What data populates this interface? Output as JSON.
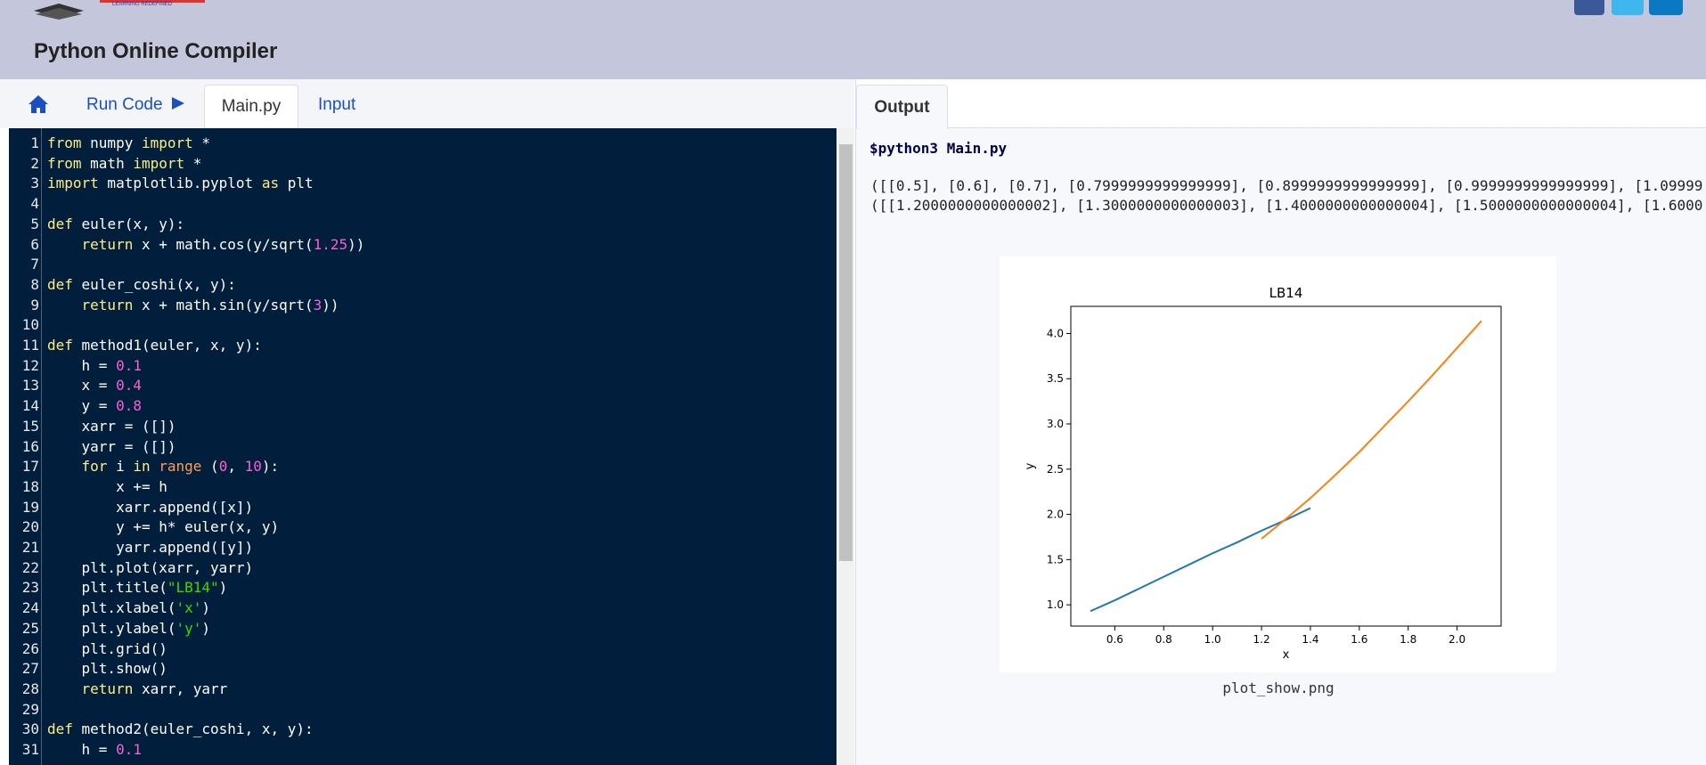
{
  "header": {
    "logo_tagline": "LEARNING REDEFINED",
    "title": "Python Online Compiler"
  },
  "left_tabs": {
    "run": "Run Code",
    "main": "Main.py",
    "input": "Input"
  },
  "right_tabs": {
    "output": "Output"
  },
  "code": {
    "lines": [
      {
        "n": 1,
        "text": "from numpy import *"
      },
      {
        "n": 2,
        "text": "from math import *"
      },
      {
        "n": 3,
        "text": "import matplotlib.pyplot as plt"
      },
      {
        "n": 4,
        "text": null
      },
      {
        "n": 5,
        "text": "def euler(x, y):"
      },
      {
        "n": 6,
        "text": "    return x + math.cos(y/sqrt(1.25))"
      },
      {
        "n": 7,
        "text": null
      },
      {
        "n": 8,
        "text": "def euler_coshi(x, y):"
      },
      {
        "n": 9,
        "text": "    return x + math.sin(y/sqrt(3))"
      },
      {
        "n": 10,
        "text": null
      },
      {
        "n": 11,
        "text": "def method1(euler, x, y):"
      },
      {
        "n": 12,
        "text": "    h = 0.1"
      },
      {
        "n": 13,
        "text": "    x = 0.4"
      },
      {
        "n": 14,
        "text": "    y = 0.8"
      },
      {
        "n": 15,
        "text": "    xarr = ([])"
      },
      {
        "n": 16,
        "text": "    yarr = ([])"
      },
      {
        "n": 17,
        "text": "    for i in range (0, 10):"
      },
      {
        "n": 18,
        "text": "        x += h"
      },
      {
        "n": 19,
        "text": "        xarr.append([x])"
      },
      {
        "n": 20,
        "text": "        y += h* euler(x, y)"
      },
      {
        "n": 21,
        "text": "        yarr.append([y])"
      },
      {
        "n": 22,
        "text": "    plt.plot(xarr, yarr)"
      },
      {
        "n": 23,
        "text": "    plt.title(\"LB14\")"
      },
      {
        "n": 24,
        "text": "    plt.xlabel('x')"
      },
      {
        "n": 25,
        "text": "    plt.ylabel('y')"
      },
      {
        "n": 26,
        "text": "    plt.grid()"
      },
      {
        "n": 27,
        "text": "    plt.show()"
      },
      {
        "n": 28,
        "text": "    return xarr, yarr"
      },
      {
        "n": 29,
        "text": null
      },
      {
        "n": 30,
        "text": "def method2(euler_coshi, x, y):"
      },
      {
        "n": 31,
        "text": "    h = 0.1"
      }
    ]
  },
  "output": {
    "command": "$python3 Main.py",
    "lines": [
      "([[0.5], [0.6], [0.7], [0.7999999999999999], [0.8999999999999999], [0.9999999999999999], [1.09999",
      "([[1.2000000000000002], [1.3000000000000003], [1.4000000000000004], [1.5000000000000004], [1.6000"
    ],
    "caption": "plot_show.png"
  },
  "chart_data": {
    "type": "line",
    "title": "LB14",
    "x_label": "x",
    "y_label": "y",
    "grid": false,
    "xlim": [
      0.42,
      2.18
    ],
    "ylim": [
      0.765,
      4.3
    ],
    "xticks": [
      0.6,
      0.8,
      {
        "value": 1,
        "label": "1.0"
      },
      1.2,
      1.4,
      1.6,
      1.8,
      {
        "value": 2,
        "label": "2.0"
      }
    ],
    "yticks": [
      {
        "value": 1,
        "label": "1.0"
      },
      1.5,
      {
        "value": 2,
        "label": "2.0"
      },
      2.5,
      {
        "value": 3,
        "label": "3.0"
      },
      3.5,
      {
        "value": 4,
        "label": "4.0"
      }
    ],
    "series": [
      {
        "color": "#1f77b4",
        "x": [
          0.5,
          0.6,
          0.7,
          0.8,
          0.9,
          1.0,
          1.1,
          1.2,
          1.3,
          1.4
        ],
        "values": [
          0.93,
          1.05,
          1.18,
          1.31,
          1.44,
          1.57,
          1.69,
          1.82,
          1.94,
          2.07
        ]
      },
      {
        "color": "#ff7f0e",
        "x": [
          1.2,
          1.3,
          1.4,
          1.5,
          1.6,
          1.7,
          1.8,
          1.9,
          2.0,
          2.1
        ],
        "values": [
          1.73,
          1.95,
          2.18,
          2.43,
          2.69,
          2.97,
          3.25,
          3.54,
          3.84,
          4.14
        ]
      }
    ]
  }
}
